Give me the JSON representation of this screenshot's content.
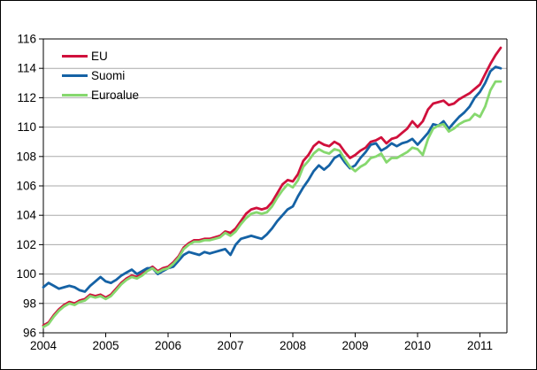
{
  "chart_data": {
    "type": "line",
    "title": "",
    "x_frequency": "monthly",
    "x_start_label": "2004",
    "x_tick_labels": [
      "2004",
      "2005",
      "2006",
      "2007",
      "2008",
      "2009",
      "2010",
      "2011"
    ],
    "y_tick_labels": [
      "96",
      "98",
      "100",
      "102",
      "104",
      "106",
      "108",
      "110",
      "112",
      "114",
      "116"
    ],
    "ylim": [
      96,
      116
    ],
    "grid": "horizontal",
    "legend_position": "top-left-inside",
    "gridline_color": "#aaaaaa",
    "frame_color": "#000000",
    "background_color": "#ffffff",
    "series": [
      {
        "name": "EU",
        "color": "#d0103c",
        "values": [
          96.5,
          96.7,
          97.2,
          97.6,
          97.9,
          98.1,
          98.0,
          98.2,
          98.3,
          98.6,
          98.5,
          98.6,
          98.4,
          98.6,
          99.0,
          99.4,
          99.7,
          99.9,
          99.8,
          100.0,
          100.3,
          100.5,
          100.2,
          100.4,
          100.5,
          100.8,
          101.2,
          101.8,
          102.1,
          102.3,
          102.3,
          102.4,
          102.4,
          102.5,
          102.6,
          102.9,
          102.8,
          103.1,
          103.6,
          104.1,
          104.4,
          104.5,
          104.4,
          104.5,
          104.9,
          105.5,
          106.1,
          106.4,
          106.3,
          106.8,
          107.7,
          108.1,
          108.7,
          109.0,
          108.8,
          108.7,
          109.0,
          108.8,
          108.3,
          107.9,
          108.1,
          108.4,
          108.6,
          109.0,
          109.1,
          109.3,
          108.9,
          109.2,
          109.3,
          109.6,
          109.9,
          110.4,
          110.0,
          110.4,
          111.2,
          111.6,
          111.7,
          111.8,
          111.5,
          111.6,
          111.9,
          112.1,
          112.3,
          112.6,
          112.9,
          113.6,
          114.3,
          114.9,
          115.4
        ]
      },
      {
        "name": "Suomi",
        "color": "#1562a5",
        "values": [
          99.1,
          99.4,
          99.2,
          99.0,
          99.1,
          99.2,
          99.1,
          98.9,
          98.8,
          99.2,
          99.5,
          99.8,
          99.5,
          99.4,
          99.6,
          99.9,
          100.1,
          100.3,
          100.0,
          100.2,
          100.4,
          100.4,
          100.0,
          100.2,
          100.4,
          100.5,
          100.9,
          101.3,
          101.5,
          101.4,
          101.3,
          101.5,
          101.4,
          101.5,
          101.6,
          101.7,
          101.3,
          102.0,
          102.4,
          102.5,
          102.6,
          102.5,
          102.4,
          102.7,
          103.1,
          103.6,
          104.0,
          104.4,
          104.6,
          105.3,
          105.9,
          106.4,
          107.0,
          107.4,
          107.1,
          107.4,
          107.9,
          108.1,
          107.6,
          107.2,
          107.4,
          107.9,
          108.3,
          108.8,
          108.9,
          108.4,
          108.6,
          108.9,
          108.7,
          108.9,
          109.0,
          109.2,
          108.8,
          109.2,
          109.6,
          110.2,
          110.1,
          110.4,
          109.9,
          110.3,
          110.7,
          111.0,
          111.4,
          112.0,
          112.4,
          113.0,
          113.8,
          114.1,
          114.0
        ]
      },
      {
        "name": "Euroalue",
        "color": "#86d86e",
        "values": [
          96.4,
          96.6,
          97.1,
          97.5,
          97.8,
          98.0,
          97.9,
          98.1,
          98.2,
          98.5,
          98.4,
          98.5,
          98.3,
          98.5,
          98.9,
          99.3,
          99.6,
          99.8,
          99.7,
          99.9,
          100.2,
          100.4,
          100.1,
          100.3,
          100.4,
          100.7,
          101.1,
          101.7,
          102.0,
          102.2,
          102.2,
          102.3,
          102.3,
          102.4,
          102.5,
          102.8,
          102.6,
          102.9,
          103.4,
          103.8,
          104.1,
          104.2,
          104.1,
          104.2,
          104.6,
          105.2,
          105.7,
          106.1,
          105.9,
          106.4,
          107.3,
          107.7,
          108.2,
          108.5,
          108.3,
          108.2,
          108.5,
          108.4,
          107.8,
          107.3,
          107.0,
          107.3,
          107.5,
          107.9,
          108.0,
          108.2,
          107.6,
          107.9,
          107.9,
          108.1,
          108.3,
          108.6,
          108.5,
          108.1,
          109.2,
          109.9,
          110.1,
          110.2,
          109.7,
          109.9,
          110.2,
          110.4,
          110.5,
          110.9,
          110.7,
          111.4,
          112.5,
          113.1,
          113.1
        ]
      }
    ]
  }
}
